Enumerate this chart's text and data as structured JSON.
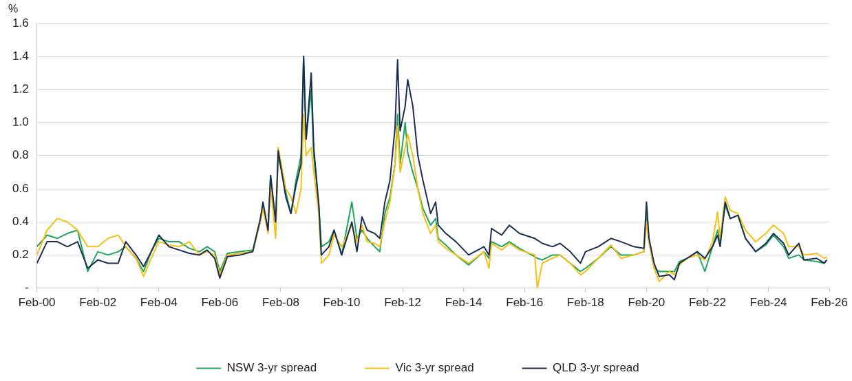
{
  "chart_data": {
    "type": "line",
    "ylabel": "%",
    "x": [
      "2000-02",
      "2000-06",
      "2000-10",
      "2001-02",
      "2001-06",
      "2001-10",
      "2002-02",
      "2002-06",
      "2002-10",
      "2003-01",
      "2003-05",
      "2003-08",
      "2003-11",
      "2004-02",
      "2004-06",
      "2004-10",
      "2005-02",
      "2005-06",
      "2005-09",
      "2005-12",
      "2006-02",
      "2006-05",
      "2006-10",
      "2007-03",
      "2007-06",
      "2007-07",
      "2007-09",
      "2007-10",
      "2007-12",
      "2008-01",
      "2008-04",
      "2008-06",
      "2008-08",
      "2008-10",
      "2008-11",
      "2008-12",
      "2009-02",
      "2009-03",
      "2009-05",
      "2009-06",
      "2009-09",
      "2009-11",
      "2010-02",
      "2010-06",
      "2010-08",
      "2010-10",
      "2010-12",
      "2011-03",
      "2011-05",
      "2011-07",
      "2011-09",
      "2011-11",
      "2011-12",
      "2012-01",
      "2012-03",
      "2012-04",
      "2012-06",
      "2012-08",
      "2012-10",
      "2013-01",
      "2013-03",
      "2013-04",
      "2013-07",
      "2013-11",
      "2014-04",
      "2014-10",
      "2014-12",
      "2015-01",
      "2015-05",
      "2015-08",
      "2015-12",
      "2016-06",
      "2016-07",
      "2016-09",
      "2017-01",
      "2017-04",
      "2017-08",
      "2017-12",
      "2018-02",
      "2018-07",
      "2018-12",
      "2019-04",
      "2019-09",
      "2020-01",
      "2020-02",
      "2020-03",
      "2020-05",
      "2020-07",
      "2020-11",
      "2021-01",
      "2021-03",
      "2021-06",
      "2021-10",
      "2022-01",
      "2022-04",
      "2022-06",
      "2022-07",
      "2022-09",
      "2022-11",
      "2023-02",
      "2023-05",
      "2023-09",
      "2024-01",
      "2024-04",
      "2024-08",
      "2024-10",
      "2025-02",
      "2025-04",
      "2025-09",
      "2025-12",
      "2026-01"
    ],
    "series": [
      {
        "name": "NSW 3-yr spread",
        "color": "#1fa55b",
        "values": [
          0.25,
          0.32,
          0.3,
          0.33,
          0.35,
          0.1,
          0.22,
          0.2,
          0.22,
          0.25,
          0.18,
          0.1,
          0.22,
          0.3,
          0.28,
          0.28,
          0.24,
          0.22,
          0.25,
          0.22,
          0.1,
          0.21,
          0.22,
          0.23,
          0.42,
          0.5,
          0.35,
          0.68,
          0.4,
          0.8,
          0.58,
          0.45,
          0.65,
          0.8,
          1.4,
          0.9,
          1.2,
          0.8,
          0.5,
          0.25,
          0.28,
          0.35,
          0.2,
          0.52,
          0.3,
          0.35,
          0.3,
          0.25,
          0.22,
          0.45,
          0.55,
          0.75,
          1.05,
          0.75,
          1.0,
          0.82,
          0.7,
          0.6,
          0.48,
          0.38,
          0.42,
          0.3,
          0.26,
          0.2,
          0.14,
          0.22,
          0.18,
          0.28,
          0.25,
          0.28,
          0.24,
          0.19,
          0.18,
          0.17,
          0.2,
          0.2,
          0.15,
          0.1,
          0.12,
          0.18,
          0.25,
          0.2,
          0.2,
          0.22,
          0.45,
          0.28,
          0.12,
          0.1,
          0.1,
          0.1,
          0.16,
          0.18,
          0.22,
          0.1,
          0.25,
          0.35,
          0.28,
          0.5,
          0.42,
          0.44,
          0.3,
          0.22,
          0.26,
          0.32,
          0.25,
          0.18,
          0.2,
          0.17,
          0.16,
          0.15,
          0.17
        ]
      },
      {
        "name": "Vic 3-yr spread",
        "color": "#f5bf14",
        "values": [
          0.2,
          0.35,
          0.42,
          0.4,
          0.35,
          0.25,
          0.25,
          0.3,
          0.32,
          0.25,
          0.18,
          0.07,
          0.18,
          0.28,
          0.26,
          0.25,
          0.28,
          0.2,
          0.22,
          0.2,
          0.08,
          0.2,
          0.21,
          0.22,
          0.4,
          0.48,
          0.33,
          0.62,
          0.3,
          0.85,
          0.6,
          0.55,
          0.45,
          0.6,
          1.05,
          0.8,
          0.85,
          0.7,
          0.45,
          0.15,
          0.2,
          0.32,
          0.25,
          0.38,
          0.28,
          0.38,
          0.28,
          0.27,
          0.25,
          0.4,
          0.52,
          0.75,
          0.98,
          0.7,
          0.85,
          0.93,
          0.8,
          0.6,
          0.45,
          0.33,
          0.38,
          0.28,
          0.24,
          0.2,
          0.15,
          0.22,
          0.12,
          0.27,
          0.23,
          0.27,
          0.23,
          0.2,
          0.0,
          0.15,
          0.18,
          0.2,
          0.15,
          0.08,
          0.1,
          0.18,
          0.26,
          0.18,
          0.2,
          0.22,
          0.4,
          0.28,
          0.12,
          0.04,
          0.1,
          0.08,
          0.14,
          0.18,
          0.2,
          0.17,
          0.28,
          0.46,
          0.3,
          0.55,
          0.47,
          0.45,
          0.35,
          0.28,
          0.33,
          0.38,
          0.33,
          0.25,
          0.25,
          0.2,
          0.21,
          0.18,
          0.19
        ]
      },
      {
        "name": "QLD 3-yr spread",
        "color": "#1b2d52",
        "values": [
          0.15,
          0.28,
          0.28,
          0.25,
          0.28,
          0.12,
          0.17,
          0.15,
          0.15,
          0.28,
          0.2,
          0.13,
          0.22,
          0.32,
          0.25,
          0.23,
          0.21,
          0.2,
          0.23,
          0.18,
          0.06,
          0.19,
          0.2,
          0.22,
          0.42,
          0.52,
          0.35,
          0.68,
          0.4,
          0.83,
          0.55,
          0.45,
          0.62,
          0.75,
          1.4,
          0.9,
          1.3,
          0.85,
          0.5,
          0.2,
          0.25,
          0.35,
          0.2,
          0.4,
          0.22,
          0.43,
          0.35,
          0.33,
          0.3,
          0.52,
          0.65,
          0.97,
          1.38,
          0.95,
          1.1,
          1.26,
          1.1,
          0.8,
          0.65,
          0.45,
          0.52,
          0.38,
          0.33,
          0.28,
          0.2,
          0.25,
          0.2,
          0.36,
          0.32,
          0.38,
          0.33,
          0.3,
          0.29,
          0.27,
          0.25,
          0.27,
          0.22,
          0.15,
          0.22,
          0.25,
          0.3,
          0.28,
          0.25,
          0.24,
          0.52,
          0.3,
          0.15,
          0.07,
          0.08,
          0.05,
          0.15,
          0.18,
          0.22,
          0.18,
          0.25,
          0.32,
          0.25,
          0.52,
          0.42,
          0.44,
          0.3,
          0.22,
          0.27,
          0.33,
          0.27,
          0.2,
          0.27,
          0.17,
          0.18,
          0.15,
          0.17
        ]
      }
    ],
    "xlim": [
      "2000-02",
      "2026-02"
    ],
    "xticks": [
      {
        "value": "2000-02",
        "label": "Feb-00"
      },
      {
        "value": "2002-02",
        "label": "Feb-02"
      },
      {
        "value": "2004-02",
        "label": "Feb-04"
      },
      {
        "value": "2006-02",
        "label": "Feb-06"
      },
      {
        "value": "2008-02",
        "label": "Feb-08"
      },
      {
        "value": "2010-02",
        "label": "Feb-10"
      },
      {
        "value": "2012-02",
        "label": "Feb-12"
      },
      {
        "value": "2014-02",
        "label": "Feb-14"
      },
      {
        "value": "2016-02",
        "label": "Feb-16"
      },
      {
        "value": "2018-02",
        "label": "Feb-18"
      },
      {
        "value": "2020-02",
        "label": "Feb-20"
      },
      {
        "value": "2022-02",
        "label": "Feb-22"
      },
      {
        "value": "2024-02",
        "label": "Feb-24"
      },
      {
        "value": "2026-02",
        "label": "Feb-26"
      }
    ],
    "ylim": [
      0,
      1.6
    ],
    "yticks": [
      {
        "value": 0,
        "label": "-"
      },
      {
        "value": 0.2,
        "label": "0.2"
      },
      {
        "value": 0.4,
        "label": "0.4"
      },
      {
        "value": 0.6,
        "label": "0.6"
      },
      {
        "value": 0.8,
        "label": "0.8"
      },
      {
        "value": 1.0,
        "label": "1.0"
      },
      {
        "value": 1.2,
        "label": "1.2"
      },
      {
        "value": 1.4,
        "label": "1.4"
      },
      {
        "value": 1.6,
        "label": "1.6"
      }
    ],
    "grid": "y",
    "legend": "bottom",
    "marker": "none",
    "line_style": "solid"
  }
}
